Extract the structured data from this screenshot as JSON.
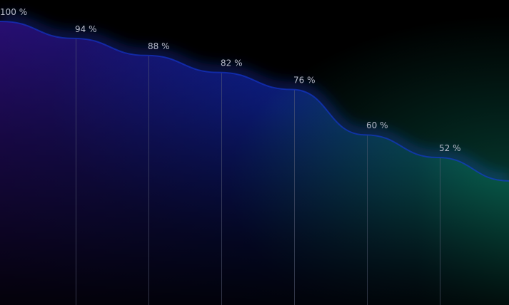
{
  "chart_data": {
    "type": "area",
    "title": "",
    "xlabel": "",
    "ylabel": "",
    "x": [
      1,
      2,
      3,
      4,
      5,
      6,
      7
    ],
    "values": [
      100,
      94,
      88,
      82,
      76,
      60,
      52
    ],
    "data_labels": [
      "100 %",
      "94 %",
      "88 %",
      "82 %",
      "76 %",
      "60 %",
      "52 %"
    ],
    "unit": "%",
    "ylim": [
      0,
      100
    ],
    "grid": false,
    "legend": "none",
    "colors": {
      "background": "#000000",
      "left_fill": "#2a0f7a",
      "mid_fill": "#0c1a7e",
      "edge_glow": "#1438d8",
      "right_fill": "#0fb59a",
      "guide_line": "#5b6178",
      "label_text": "#b9bccb"
    }
  }
}
